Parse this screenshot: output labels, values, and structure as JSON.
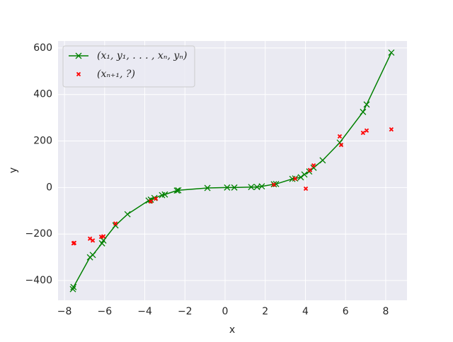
{
  "chart_data": {
    "type": "line",
    "title": null,
    "xlabel": "x",
    "ylabel": "y",
    "xlim": [
      -8.32,
      9.06
    ],
    "ylim": [
      -485,
      630
    ],
    "xticks": [
      {
        "value": -8,
        "label": "−8"
      },
      {
        "value": -6,
        "label": "−6"
      },
      {
        "value": -4,
        "label": "−4"
      },
      {
        "value": -2,
        "label": "−2"
      },
      0,
      2,
      4,
      6,
      8
    ],
    "yticks": [
      {
        "value": -400,
        "label": "−400"
      },
      {
        "value": -200,
        "label": "−200"
      },
      0,
      200,
      400,
      600
    ],
    "grid": true,
    "legend": "upper left",
    "series": [
      {
        "name": "(x₁, y₁, . . . , xₙ, yₙ)",
        "type": "line",
        "marker": "x",
        "color": "#008000",
        "x": [
          -7.58,
          -7.55,
          -6.73,
          -6.59,
          -6.13,
          -6.06,
          -5.46,
          -4.86,
          -3.81,
          -3.7,
          -3.52,
          -3.14,
          -3.0,
          -2.4,
          -2.33,
          -0.88,
          0.1,
          0.46,
          1.3,
          1.59,
          1.83,
          2.43,
          2.54,
          3.35,
          3.49,
          3.77,
          3.95,
          4.19,
          4.41,
          4.86,
          5.71,
          6.87,
          7.05,
          8.28
        ],
        "values": [
          -437,
          -428,
          -300,
          -290,
          -240,
          -228,
          -163,
          -115,
          -56,
          -52,
          -45,
          -33,
          -30,
          -13,
          -12,
          -2,
          0,
          0,
          2,
          2,
          5,
          14,
          15,
          37,
          39,
          44,
          56,
          69,
          85,
          117,
          193,
          325,
          357,
          580
        ]
      },
      {
        "name": "(xₙ₊₁, ?)",
        "type": "scatter",
        "marker": "x",
        "color": "#ff0000",
        "x": [
          -7.55,
          -7.51,
          -6.73,
          -6.59,
          -6.17,
          -6.06,
          -5.46,
          -3.7,
          -3.45,
          2.43,
          3.49,
          4.02,
          4.23,
          4.41,
          5.71,
          5.78,
          6.87,
          7.05,
          8.28
        ],
        "values": [
          -240,
          -238,
          -220,
          -228,
          -212,
          -210,
          -155,
          -60,
          -48,
          12,
          38,
          -5,
          75,
          95,
          220,
          183,
          235,
          245,
          250
        ]
      }
    ]
  }
}
